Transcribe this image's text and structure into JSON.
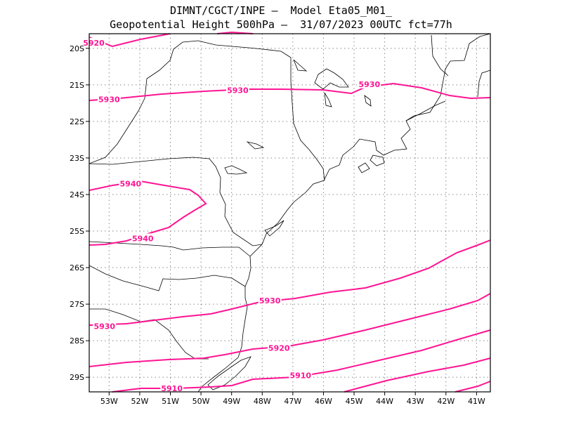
{
  "title_line1": "DIMNT/CGCT/INPE –  Model Eta05_M01_",
  "title_line2": "Geopotential Height 500hPa –  31/07/2023 00UTC fct=77h",
  "chart_data": {
    "type": "contour-map",
    "variable": "Geopotential Height 500hPa",
    "lon_range": [
      -53.65,
      -40.55
    ],
    "lat_range": [
      -29.4,
      -19.6
    ],
    "lon_ticks": [
      "53W",
      "52W",
      "51W",
      "50W",
      "49W",
      "48W",
      "47W",
      "46W",
      "45W",
      "44W",
      "43W",
      "42W",
      "41W"
    ],
    "lat_ticks": [
      "20S",
      "21S",
      "22S",
      "23S",
      "24S",
      "25S",
      "26S",
      "27S",
      "28S",
      "29S"
    ],
    "grid": "dotted",
    "contour_color": "#ff1493",
    "contour_labels": [
      {
        "text": "5920",
        "lon": -53.5,
        "lat": -19.85
      },
      {
        "text": "5930",
        "lon": -53.0,
        "lat": -21.4
      },
      {
        "text": "5930",
        "lon": -48.8,
        "lat": -21.15
      },
      {
        "text": "5930",
        "lon": -44.5,
        "lat": -20.98
      },
      {
        "text": "5940",
        "lon": -52.3,
        "lat": -23.7
      },
      {
        "text": "5940",
        "lon": -51.9,
        "lat": -25.2
      },
      {
        "text": "5930",
        "lon": -47.75,
        "lat": -26.9
      },
      {
        "text": "5930",
        "lon": -53.15,
        "lat": -27.6
      },
      {
        "text": "5920",
        "lon": -47.45,
        "lat": -28.2
      },
      {
        "text": "5910",
        "lon": -46.75,
        "lat": -28.95
      },
      {
        "text": "5910",
        "lon": -50.95,
        "lat": -29.3
      }
    ]
  }
}
